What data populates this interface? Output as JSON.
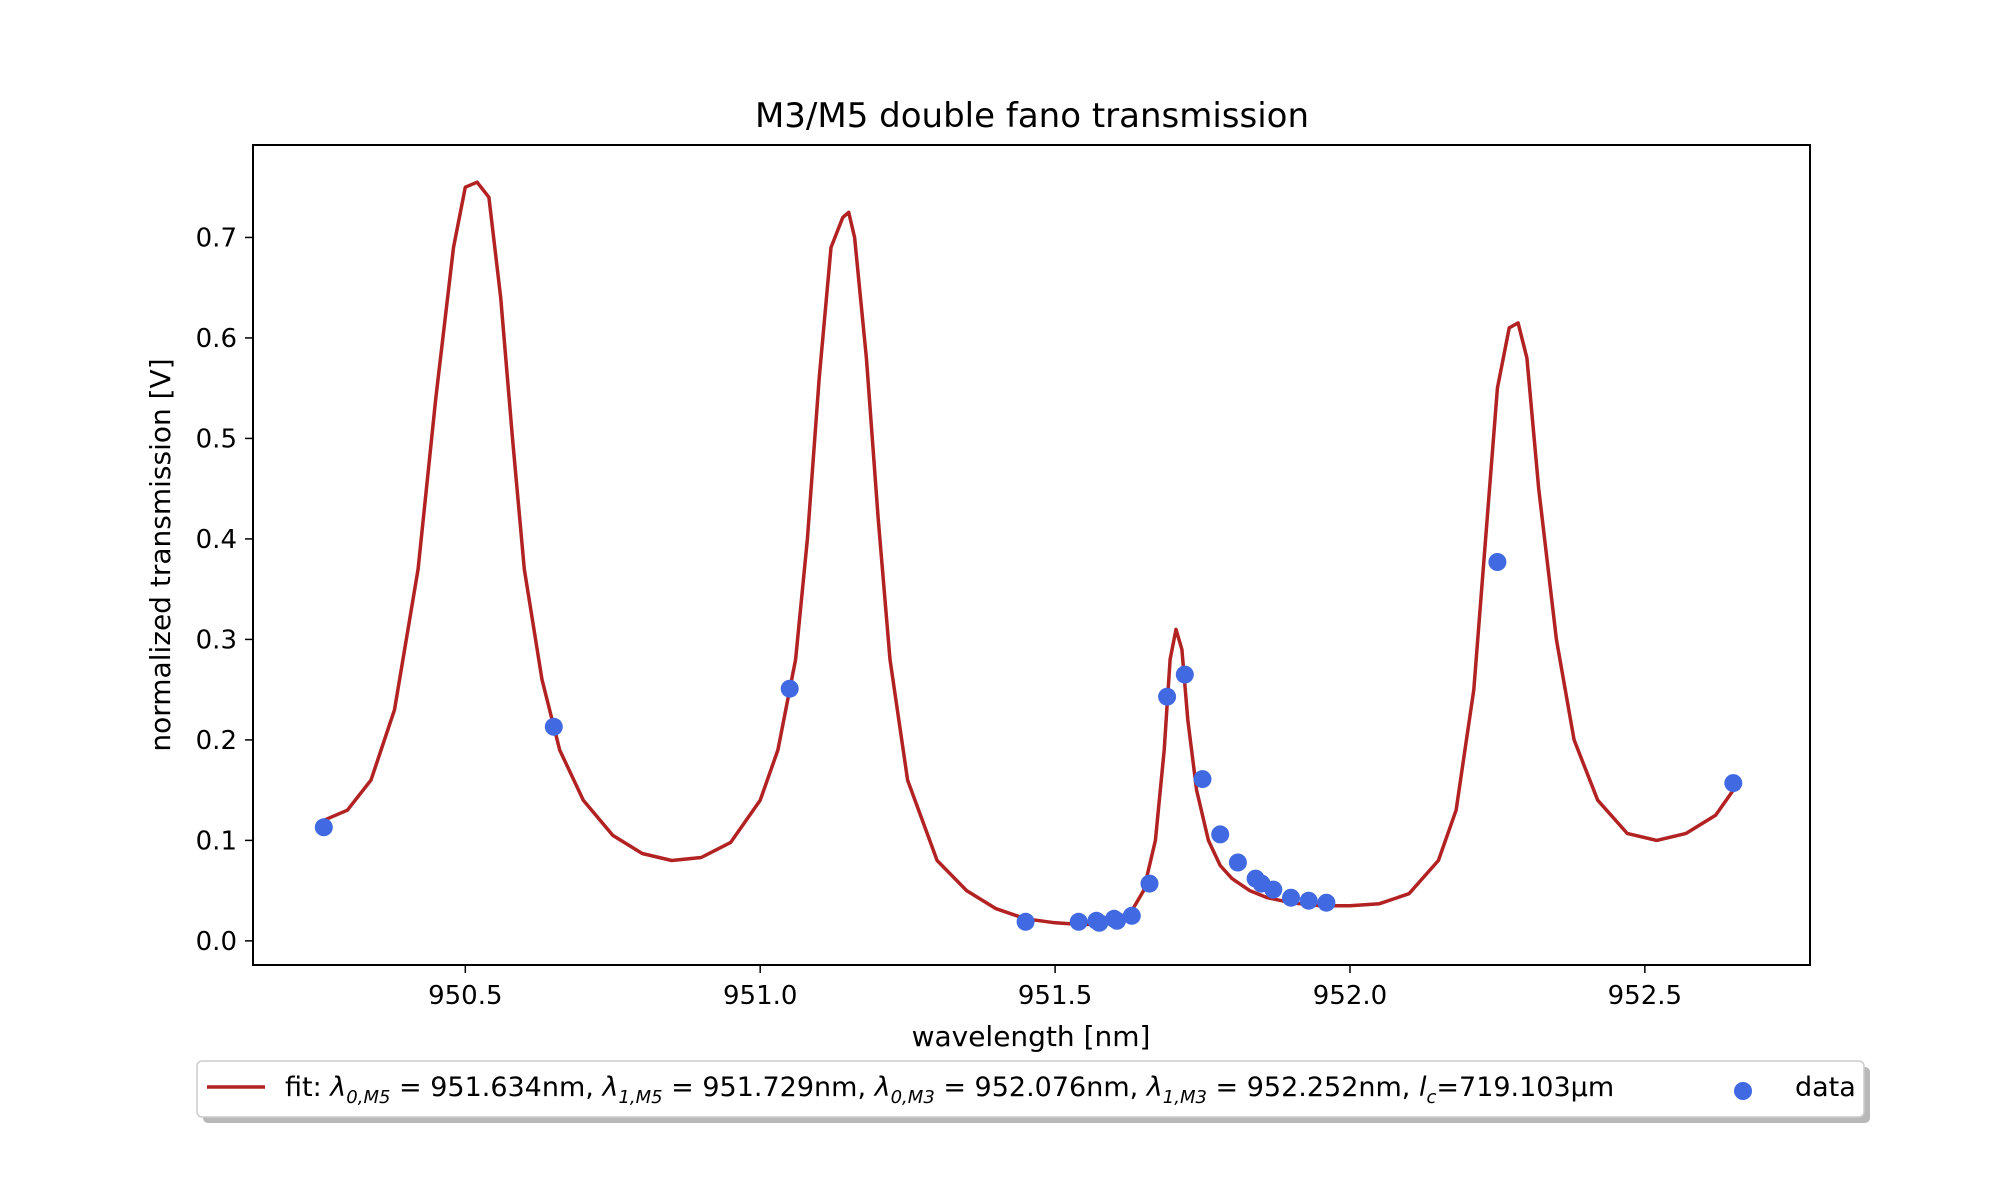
{
  "chart_data": {
    "type": "scatter",
    "title": "M3/M5 double fano transmission",
    "xlabel": "wavelength [nm]",
    "ylabel": "normalized transmission [V]",
    "xlim": [
      950.14,
      952.78
    ],
    "ylim": [
      -0.024,
      0.792
    ],
    "xticks": [
      950.5,
      951.0,
      951.5,
      952.0,
      952.5
    ],
    "xtick_labels": [
      "950.5",
      "951.0",
      "951.5",
      "952.0",
      "952.5"
    ],
    "yticks": [
      0.0,
      0.1,
      0.2,
      0.3,
      0.4,
      0.5,
      0.6,
      0.7
    ],
    "ytick_labels": [
      "0.0",
      "0.1",
      "0.2",
      "0.3",
      "0.4",
      "0.5",
      "0.6",
      "0.7"
    ],
    "grid": false,
    "legend_position": "below",
    "colors": {
      "fit": "#b22222",
      "data": "#4169e1"
    },
    "fit": {
      "name": "fit: λ0,M5 = 951.634nm, λ1,M5 = 951.729nm, λ0,M3 = 952.076nm, λ1,M3 = 952.252nm, lc=719.103μm",
      "x": [
        950.26,
        950.3,
        950.34,
        950.38,
        950.42,
        950.45,
        950.48,
        950.5,
        950.52,
        950.54,
        950.56,
        950.58,
        950.6,
        950.63,
        950.66,
        950.7,
        950.75,
        950.8,
        950.85,
        950.9,
        950.95,
        951.0,
        951.03,
        951.06,
        951.08,
        951.1,
        951.12,
        951.14,
        951.15,
        951.16,
        951.18,
        951.2,
        951.22,
        951.25,
        951.3,
        951.35,
        951.4,
        951.45,
        951.5,
        951.55,
        951.6,
        951.63,
        951.65,
        951.67,
        951.685,
        951.695,
        951.705,
        951.715,
        951.725,
        951.74,
        951.76,
        951.78,
        951.8,
        951.83,
        951.86,
        951.9,
        951.95,
        952.0,
        952.05,
        952.1,
        952.15,
        952.18,
        952.21,
        952.23,
        952.25,
        952.27,
        952.285,
        952.3,
        952.32,
        952.35,
        952.38,
        952.42,
        952.47,
        952.52,
        952.57,
        952.62,
        952.65
      ],
      "y": [
        0.12,
        0.13,
        0.16,
        0.23,
        0.37,
        0.54,
        0.69,
        0.75,
        0.755,
        0.74,
        0.64,
        0.5,
        0.37,
        0.26,
        0.19,
        0.14,
        0.105,
        0.087,
        0.08,
        0.083,
        0.098,
        0.14,
        0.19,
        0.28,
        0.4,
        0.56,
        0.69,
        0.72,
        0.725,
        0.7,
        0.58,
        0.42,
        0.28,
        0.16,
        0.08,
        0.05,
        0.032,
        0.022,
        0.018,
        0.016,
        0.02,
        0.03,
        0.05,
        0.1,
        0.19,
        0.28,
        0.31,
        0.29,
        0.22,
        0.15,
        0.1,
        0.075,
        0.062,
        0.05,
        0.043,
        0.038,
        0.035,
        0.035,
        0.037,
        0.047,
        0.08,
        0.13,
        0.25,
        0.4,
        0.55,
        0.61,
        0.615,
        0.58,
        0.45,
        0.3,
        0.2,
        0.14,
        0.107,
        0.1,
        0.107,
        0.125,
        0.15
      ]
    },
    "data": {
      "name": "data",
      "x": [
        950.26,
        950.65,
        951.05,
        951.45,
        951.54,
        951.57,
        951.575,
        951.6,
        951.605,
        951.63,
        951.66,
        951.69,
        951.72,
        951.75,
        951.78,
        951.81,
        951.84,
        951.85,
        951.87,
        951.9,
        951.93,
        951.96,
        952.25,
        952.65
      ],
      "y": [
        0.113,
        0.213,
        0.251,
        0.019,
        0.019,
        0.02,
        0.018,
        0.022,
        0.02,
        0.025,
        0.057,
        0.243,
        0.265,
        0.161,
        0.106,
        0.078,
        0.062,
        0.057,
        0.051,
        0.043,
        0.04,
        0.038,
        0.377,
        0.157
      ]
    },
    "legend": {
      "fit_prefix": "fit: ",
      "l0m5": "λ",
      "l0m5_sub": "0,M5",
      "l0m5_val": " = 951.634nm, ",
      "l1m5": "λ",
      "l1m5_sub": "1,M5",
      "l1m5_val": " = 951.729nm, ",
      "l0m3": "λ",
      "l0m3_sub": "0,M3",
      "l0m3_val": " = 952.076nm, ",
      "l1m3": "λ",
      "l1m3_sub": "1,M3",
      "l1m3_val": " = 952.252nm, ",
      "lc": "l",
      "lc_sub": "c",
      "lc_val": "=719.103μm",
      "data_label": "data"
    }
  }
}
